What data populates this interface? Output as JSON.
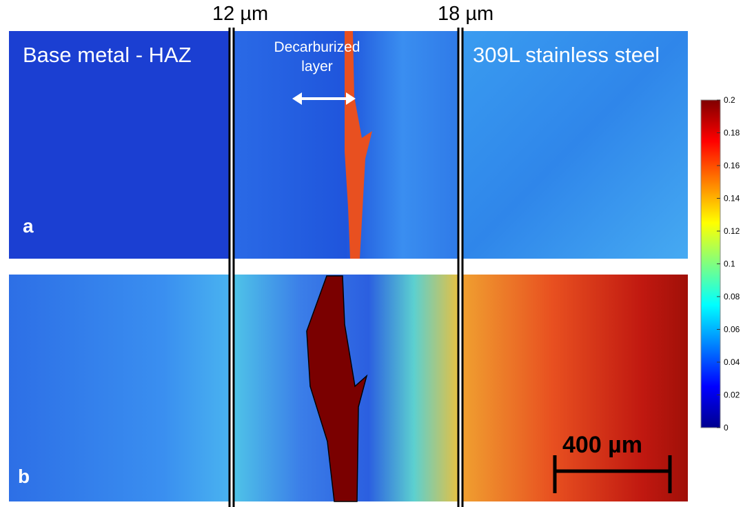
{
  "labels": {
    "left_boundary": "12 µm",
    "right_boundary": "18 µm",
    "base_metal": "Base metal - HAZ",
    "decarburized": "Decarburized layer",
    "stainless": "309L stainless steel",
    "panel_a": "a",
    "panel_b": "b",
    "scale_bar": "400 µm"
  },
  "colorbar": {
    "lim": [
      0,
      0.2
    ],
    "ticks": [
      0,
      0.02,
      0.04,
      0.06,
      0.08,
      0.1,
      0.12,
      0.14,
      0.16,
      0.18,
      0.2
    ]
  }
}
